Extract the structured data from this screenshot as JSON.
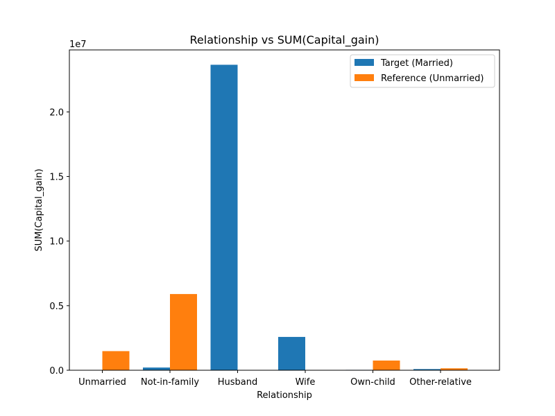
{
  "chart_data": {
    "type": "bar",
    "title": "Relationship vs SUM(Capital_gain)",
    "xlabel": "Relationship",
    "ylabel": "SUM(Capital_gain)",
    "y_scale_label": "1e7",
    "categories": [
      "Unmarried",
      "Not-in-family",
      "Husband",
      "Wife",
      "Own-child",
      "Other-relative"
    ],
    "series": [
      {
        "name": "Target (Married)",
        "color": "#1f77b4",
        "values": [
          20000,
          210000,
          23650000,
          2580000,
          30000,
          90000
        ]
      },
      {
        "name": "Reference (Unmarried)",
        "color": "#ff7f0e",
        "values": [
          1480000,
          5900000,
          0,
          0,
          750000,
          150000
        ]
      }
    ],
    "ylim": [
      0,
      24800000
    ],
    "yticks": [
      {
        "value": 0,
        "label": "0.0"
      },
      {
        "value": 5000000,
        "label": "0.5"
      },
      {
        "value": 10000000,
        "label": "1.0"
      },
      {
        "value": 15000000,
        "label": "1.5"
      },
      {
        "value": 20000000,
        "label": "2.0"
      }
    ],
    "grid": false,
    "legend_position": "top-right"
  }
}
